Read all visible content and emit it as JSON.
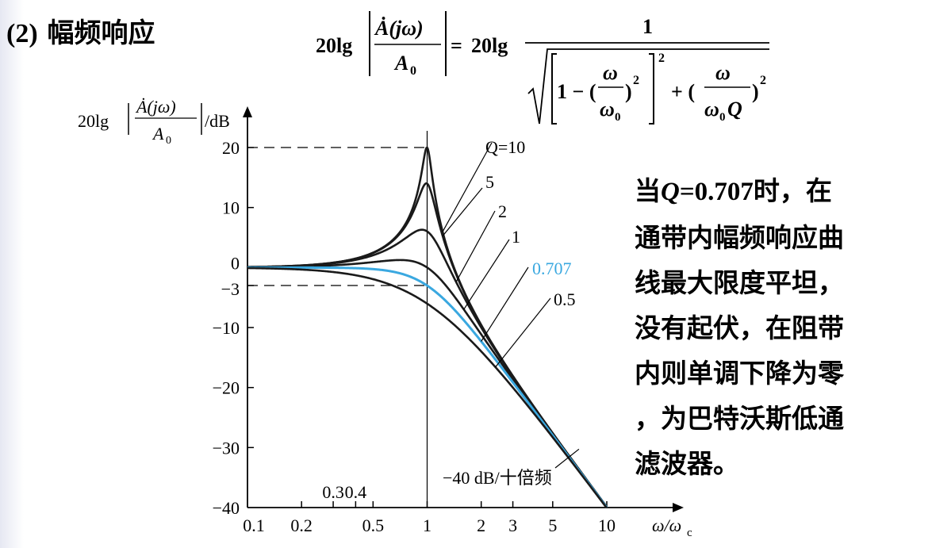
{
  "title": {
    "number": "(2)",
    "text": "幅频响应"
  },
  "formula": {
    "lhs_prefix": "20lg",
    "lhs_numerator": "Ȧ(jω)",
    "lhs_denominator": "A",
    "lhs_denominator_sub": "0",
    "equals": "=",
    "rhs_prefix": "20lg",
    "rhs_numerator": "1",
    "one_minus": "1 − (",
    "omega": "ω",
    "omega0": "ω",
    "omega0_sub": "0",
    "close_paren": ")",
    "plus": "+ (",
    "omega0q": "ω",
    "omega0q_sub": "0",
    "q": "Q",
    "sq": "2"
  },
  "note": {
    "lines": [
      {
        "a": "当",
        "q": "Q",
        "b": "=0.707",
        "c": "时，在"
      },
      {
        "text": "通带内幅频响应曲"
      },
      {
        "text": "线最大限度平坦，"
      },
      {
        "text": "没有起伏，在阻带"
      },
      {
        "text": "内则单调下降为零"
      },
      {
        "text": "，为巴特沃斯低通"
      },
      {
        "text": "滤波器。"
      }
    ]
  },
  "chart_data": {
    "type": "line",
    "xscale": "log",
    "xlim": [
      0.1,
      10
    ],
    "ylim": [
      -40,
      20
    ],
    "xlabel": "ω/ω",
    "xlabel_sub": "c",
    "ylabel_prefix": "20lg",
    "ylabel_numerator": "Ȧ(jω)",
    "ylabel_denominator": "A",
    "ylabel_denominator_sub": "0",
    "ylabel_unit": "/dB",
    "xticks": [
      {
        "value": 0.1,
        "label": "0.1"
      },
      {
        "value": 0.2,
        "label": "0.2"
      },
      {
        "value": 0.5,
        "label": "0.5"
      },
      {
        "value": 1,
        "label": "1"
      },
      {
        "value": 2,
        "label": "2"
      },
      {
        "value": 3,
        "label": "3"
      },
      {
        "value": 5,
        "label": "5"
      },
      {
        "value": 10,
        "label": "10"
      }
    ],
    "xticks_upper": [
      {
        "value": 0.3,
        "label": "0.3"
      },
      {
        "value": 0.4,
        "label": "0.4"
      }
    ],
    "yticks": [
      {
        "value": 20,
        "label": "20"
      },
      {
        "value": 10,
        "label": "10"
      },
      {
        "value": 0,
        "label": "0"
      },
      {
        "value": -3,
        "label": "−3"
      },
      {
        "value": -10,
        "label": "−10"
      },
      {
        "value": -20,
        "label": "−20"
      },
      {
        "value": -30,
        "label": "−30"
      },
      {
        "value": -40,
        "label": "−40"
      }
    ],
    "reference_lines": [
      20,
      -3
    ],
    "series": [
      {
        "name": "Q=10",
        "q": 10,
        "color": "#1a1a1a"
      },
      {
        "name": "5",
        "q": 5,
        "color": "#1a1a1a"
      },
      {
        "name": "2",
        "q": 2,
        "color": "#1a1a1a"
      },
      {
        "name": "1",
        "q": 1,
        "color": "#1a1a1a"
      },
      {
        "name": "0.707",
        "q": 0.707,
        "color": "#3aa8e0"
      },
      {
        "name": "0.5",
        "q": 0.5,
        "color": "#1a1a1a"
      }
    ],
    "annotation": "−40 dB/十倍频",
    "highlight_color": "#3aa8e0"
  }
}
